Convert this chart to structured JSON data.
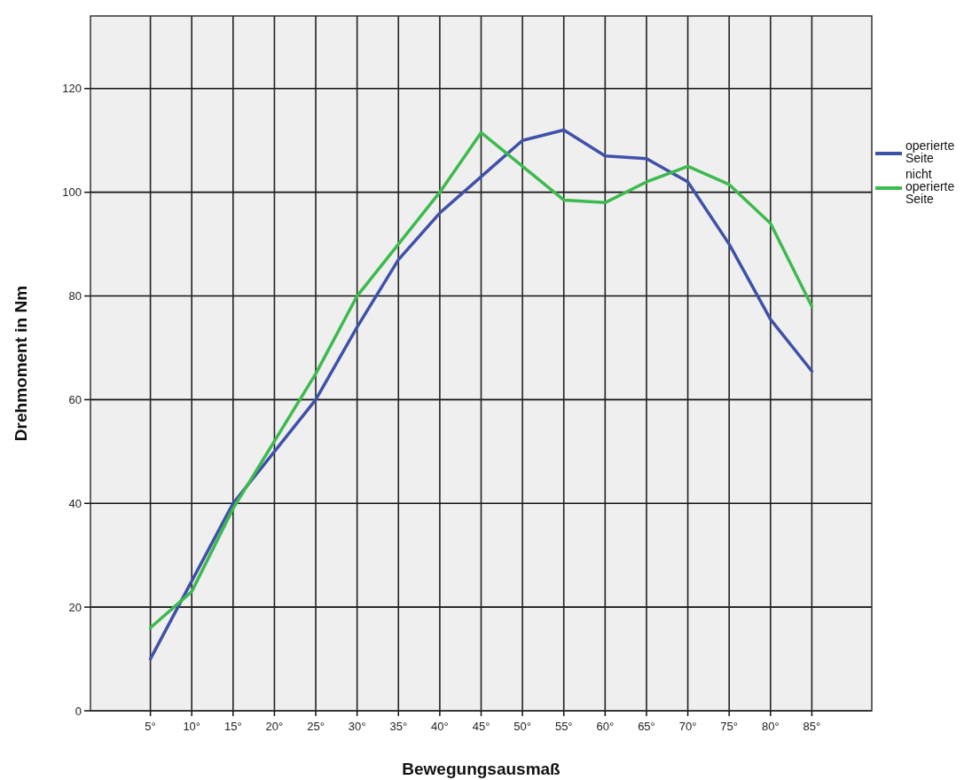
{
  "chart_data": {
    "type": "line",
    "xlabel": "Bewegungsausmaß",
    "ylabel": "Drehmoment in Nm",
    "categories": [
      "5°",
      "10°",
      "15°",
      "20°",
      "25°",
      "30°",
      "35°",
      "40°",
      "45°",
      "50°",
      "55°",
      "60°",
      "65°",
      "70°",
      "75°",
      "80°",
      "85°"
    ],
    "series": [
      {
        "name": "operierte Seite",
        "color": "#3f51a8",
        "values": [
          10,
          25,
          40,
          50,
          60,
          74,
          87,
          96,
          103,
          110,
          112,
          107,
          106.5,
          102,
          90,
          75.5,
          65.5
        ]
      },
      {
        "name": "nicht operierte Seite",
        "color": "#3dba4e",
        "values": [
          16,
          23,
          39,
          52,
          65,
          80,
          90,
          100,
          111.5,
          105,
          98.5,
          98,
          102,
          105,
          101.5,
          94,
          78
        ]
      }
    ],
    "ylim": [
      0,
      134
    ],
    "yticks": [
      0,
      20,
      40,
      60,
      80,
      100,
      120
    ],
    "grid": true,
    "legend": "right",
    "marker": "none",
    "line_style": "solid"
  }
}
